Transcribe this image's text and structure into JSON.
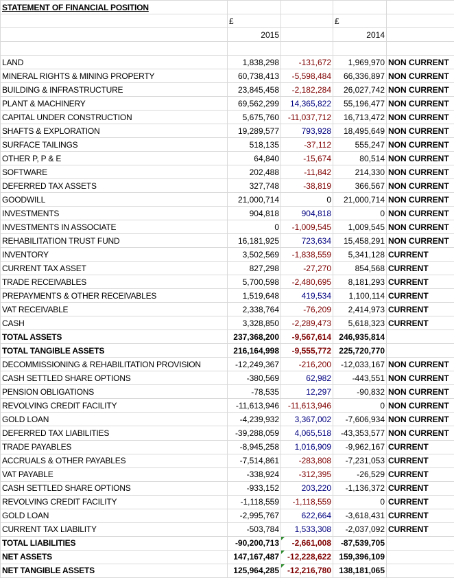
{
  "title": "STATEMENT OF FINANCIAL POSITION",
  "currency_symbol_2015": "£",
  "currency_symbol_2014": "£",
  "year_2015": "2015",
  "year_2014": "2014",
  "rows": [
    {
      "label": "LAND",
      "v2015": "1,838,298",
      "diff": "-131,672",
      "v2014": "1,969,970",
      "cls": "NON CURRENT"
    },
    {
      "label": "MINERAL RIGHTS & MINING PROPERTY",
      "v2015": "60,738,413",
      "diff": "-5,598,484",
      "v2014": "66,336,897",
      "cls": "NON CURRENT"
    },
    {
      "label": "BUILDING & INFRASTRUCTURE",
      "v2015": "23,845,458",
      "diff": "-2,182,284",
      "v2014": "26,027,742",
      "cls": "NON CURRENT"
    },
    {
      "label": "PLANT & MACHINERY",
      "v2015": "69,562,299",
      "diff": "14,365,822",
      "v2014": "55,196,477",
      "cls": "NON CURRENT"
    },
    {
      "label": "CAPITAL UNDER CONSTRUCTION",
      "v2015": "5,675,760",
      "diff": "-11,037,712",
      "v2014": "16,713,472",
      "cls": "NON CURRENT"
    },
    {
      "label": "SHAFTS & EXPLORATION",
      "v2015": "19,289,577",
      "diff": "793,928",
      "v2014": "18,495,649",
      "cls": "NON CURRENT"
    },
    {
      "label": "SURFACE TAILINGS",
      "v2015": "518,135",
      "diff": "-37,112",
      "v2014": "555,247",
      "cls": "NON CURRENT"
    },
    {
      "label": "OTHER P, P & E",
      "v2015": "64,840",
      "diff": "-15,674",
      "v2014": "80,514",
      "cls": "NON CURRENT"
    },
    {
      "label": "SOFTWARE",
      "v2015": "202,488",
      "diff": "-11,842",
      "v2014": "214,330",
      "cls": "NON CURRENT"
    },
    {
      "label": "DEFERRED TAX ASSETS",
      "v2015": "327,748",
      "diff": "-38,819",
      "v2014": "366,567",
      "cls": "NON CURRENT"
    },
    {
      "label": "GOODWILL",
      "v2015": "21,000,714",
      "diff": "0",
      "v2014": "21,000,714",
      "cls": "NON CURRENT"
    },
    {
      "label": "INVESTMENTS",
      "v2015": "904,818",
      "diff": "904,818",
      "v2014": "0",
      "cls": "NON CURRENT"
    },
    {
      "label": "INVESTMENTS IN ASSOCIATE",
      "v2015": "0",
      "diff": "-1,009,545",
      "v2014": "1,009,545",
      "cls": "NON CURRENT"
    },
    {
      "label": "REHABILITATION TRUST FUND",
      "v2015": "16,181,925",
      "diff": "723,634",
      "v2014": "15,458,291",
      "cls": "NON CURRENT"
    },
    {
      "label": "INVENTORY",
      "v2015": "3,502,569",
      "diff": "-1,838,559",
      "v2014": "5,341,128",
      "cls": "CURRENT"
    },
    {
      "label": "CURRENT TAX ASSET",
      "v2015": "827,298",
      "diff": "-27,270",
      "v2014": "854,568",
      "cls": "CURRENT"
    },
    {
      "label": "TRADE RECEIVABLES",
      "v2015": "5,700,598",
      "diff": "-2,480,695",
      "v2014": "8,181,293",
      "cls": "CURRENT"
    },
    {
      "label": "PREPAYMENTS & OTHER RECEIVABLES",
      "v2015": "1,519,648",
      "diff": "419,534",
      "v2014": "1,100,114",
      "cls": "CURRENT"
    },
    {
      "label": "VAT RECEIVABLE",
      "v2015": "2,338,764",
      "diff": "-76,209",
      "v2014": "2,414,973",
      "cls": "CURRENT"
    },
    {
      "label": "CASH",
      "v2015": "3,328,850",
      "diff": "-2,289,473",
      "v2014": "5,618,323",
      "cls": "CURRENT"
    },
    {
      "label": "TOTAL ASSETS",
      "v2015": "237,368,200",
      "diff": "-9,567,614",
      "v2014": "246,935,814",
      "cls": "",
      "bold": true
    },
    {
      "label": "TOTAL TANGIBLE ASSETS",
      "v2015": "216,164,998",
      "diff": "-9,555,772",
      "v2014": "225,720,770",
      "cls": "",
      "bold": true
    },
    {
      "label": "DECOMMISSIONING & REHABILITATION PROVISION",
      "v2015": "-12,249,367",
      "diff": "-216,200",
      "v2014": "-12,033,167",
      "cls": "NON CURRENT"
    },
    {
      "label": "CASH SETTLED SHARE OPTIONS",
      "v2015": "-380,569",
      "diff": "62,982",
      "v2014": "-443,551",
      "cls": "NON CURRENT"
    },
    {
      "label": "PENSION OBLIGATIONS",
      "v2015": "-78,535",
      "diff": "12,297",
      "v2014": "-90,832",
      "cls": "NON CURRENT"
    },
    {
      "label": "REVOLVING CREDIT FACILITY",
      "v2015": "-11,613,946",
      "diff": "-11,613,946",
      "v2014": "0",
      "cls": "NON CURRENT"
    },
    {
      "label": "GOLD LOAN",
      "v2015": "-4,239,932",
      "diff": "3,367,002",
      "v2014": "-7,606,934",
      "cls": "NON CURRENT"
    },
    {
      "label": "DEFERRED TAX LIABILITIES",
      "v2015": "-39,288,059",
      "diff": "4,065,518",
      "v2014": "-43,353,577",
      "cls": "NON CURRENT"
    },
    {
      "label": "TRADE PAYABLES",
      "v2015": "-8,945,258",
      "diff": "1,016,909",
      "v2014": "-9,962,167",
      "cls": "CURRENT"
    },
    {
      "label": "ACCRUALS & OTHER PAYABLES",
      "v2015": "-7,514,861",
      "diff": "-283,808",
      "v2014": "-7,231,053",
      "cls": "CURRENT"
    },
    {
      "label": "VAT PAYABLE",
      "v2015": "-338,924",
      "diff": "-312,395",
      "v2014": "-26,529",
      "cls": "CURRENT"
    },
    {
      "label": "CASH SETTLED SHARE OPTIONS",
      "v2015": "-933,152",
      "diff": "203,220",
      "v2014": "-1,136,372",
      "cls": "CURRENT"
    },
    {
      "label": "REVOLVING CREDIT FACILITY",
      "v2015": "-1,118,559",
      "diff": "-1,118,559",
      "v2014": "0",
      "cls": "CURRENT"
    },
    {
      "label": "GOLD LOAN",
      "v2015": "-2,995,767",
      "diff": "622,664",
      "v2014": "-3,618,431",
      "cls": "CURRENT"
    },
    {
      "label": "CURRENT TAX LIABILITY",
      "v2015": "-503,784",
      "diff": "1,533,308",
      "v2014": "-2,037,092",
      "cls": "CURRENT"
    },
    {
      "label": "TOTAL LIABILITIES",
      "v2015": "-90,200,713",
      "diff": "-2,661,008",
      "v2014": "-87,539,705",
      "cls": "",
      "bold": true,
      "flag": true
    },
    {
      "label": "NET ASSETS",
      "v2015": "147,167,487",
      "diff": "-12,228,622",
      "v2014": "159,396,109",
      "cls": "",
      "bold": true,
      "flag": true
    },
    {
      "label": "NET TANGIBLE ASSETS",
      "v2015": "125,964,285",
      "diff": "-12,216,780",
      "v2014": "138,181,065",
      "cls": "",
      "bold": true,
      "flag": true
    }
  ]
}
